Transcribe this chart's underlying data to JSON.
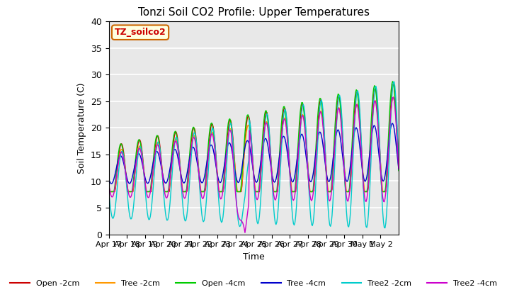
{
  "title": "Tonzi Soil CO2 Profile: Upper Temperatures",
  "ylabel": "Soil Temperature (C)",
  "xlabel": "Time",
  "watermark": "TZ_soilco2",
  "ylim": [
    0,
    40
  ],
  "series": [
    {
      "label": "Open -2cm",
      "color": "#cc0000"
    },
    {
      "label": "Tree -2cm",
      "color": "#ff9900"
    },
    {
      "label": "Open -4cm",
      "color": "#00cc00"
    },
    {
      "label": "Tree -4cm",
      "color": "#0000cc"
    },
    {
      "label": "Tree2 -2cm",
      "color": "#00cccc"
    },
    {
      "label": "Tree2 -4cm",
      "color": "#cc00cc"
    }
  ],
  "background_color": "#e8e8e8",
  "grid_color": "#ffffff",
  "tick_labels": [
    "Apr 17",
    "Apr 18",
    "Apr 19",
    "Apr 20",
    "Apr 21",
    "Apr 22",
    "Apr 23",
    "Apr 24",
    "Apr 25",
    "Apr 26",
    "Apr 27",
    "Apr 28",
    "Apr 29",
    "Apr 30",
    "May 1",
    "May 2"
  ]
}
